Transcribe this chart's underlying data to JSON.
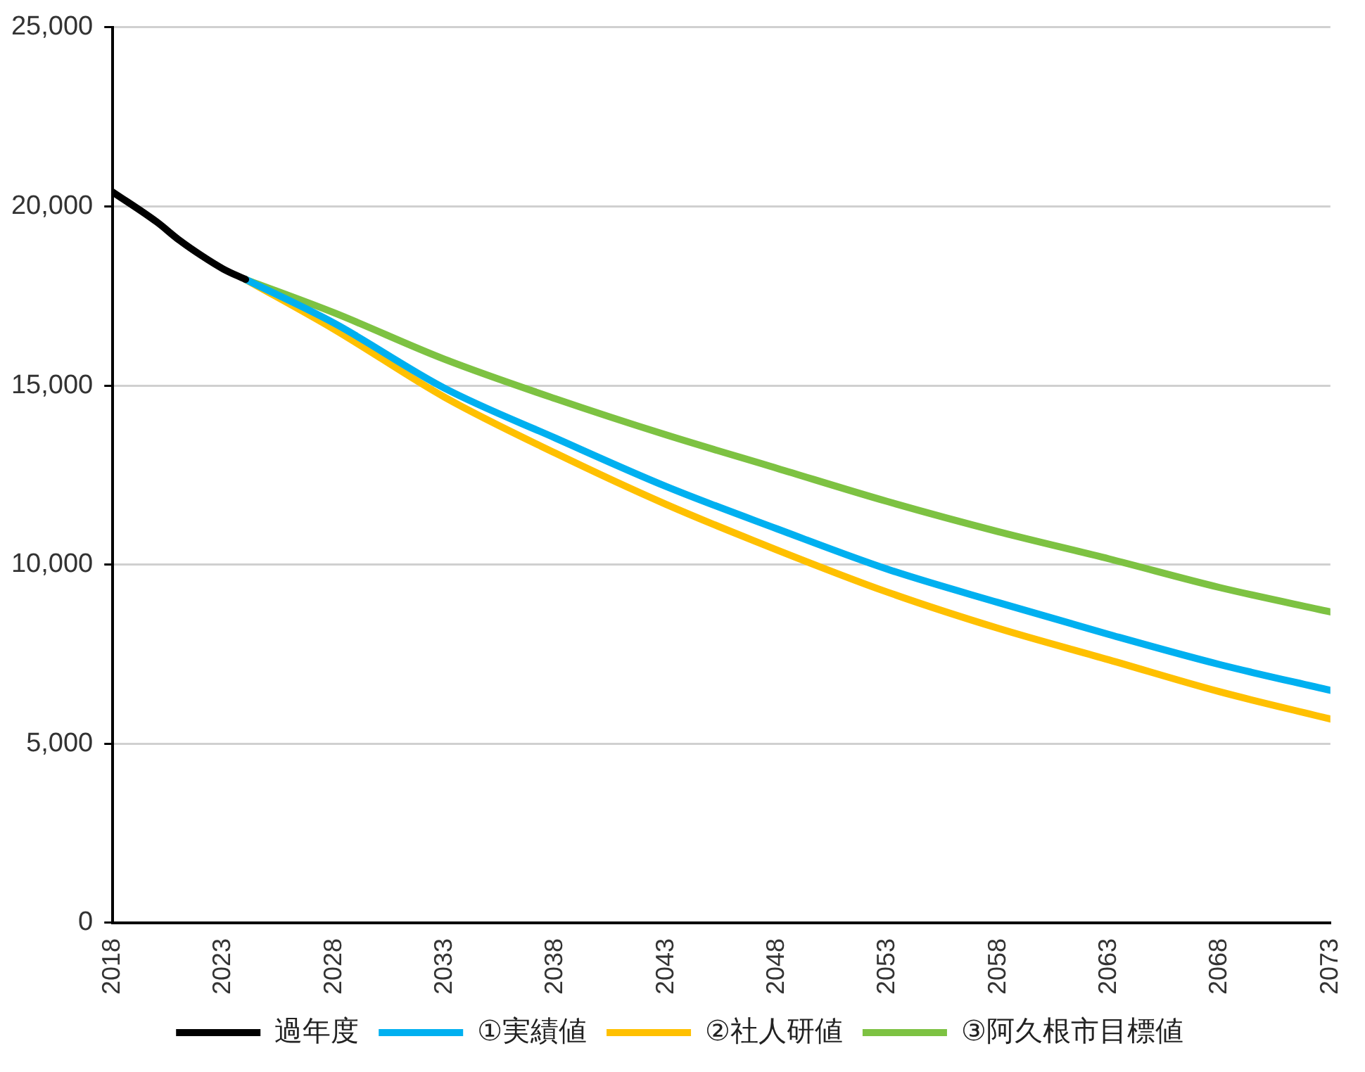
{
  "chart_data": {
    "type": "line",
    "xlim": [
      2018,
      2073
    ],
    "xticks": [
      2018,
      2023,
      2028,
      2033,
      2038,
      2043,
      2048,
      2053,
      2058,
      2063,
      2068,
      2073
    ],
    "ylim": [
      0,
      25000
    ],
    "yticks": [
      {
        "value": 0,
        "label": "0"
      },
      {
        "value": 5000,
        "label": "5,000"
      },
      {
        "value": 10000,
        "label": "10,000"
      },
      {
        "value": 15000,
        "label": "15,000"
      },
      {
        "value": 20000,
        "label": "20,000"
      },
      {
        "value": 25000,
        "label": "25,000"
      }
    ],
    "grid": "y",
    "legend": "bottom",
    "marker": "none",
    "line_style": "solid",
    "series": [
      {
        "name": "過年度",
        "color": "#000000",
        "x": [
          2018,
          2020,
          2021,
          2022,
          2023,
          2024
        ],
        "values": [
          20400,
          19560,
          19060,
          18630,
          18250,
          17960
        ]
      },
      {
        "name": "①実績値",
        "color": "#00b0f0",
        "x": [
          2024,
          2028,
          2033,
          2038,
          2043,
          2048,
          2053,
          2058,
          2063,
          2068,
          2073
        ],
        "values": [
          17960,
          16740,
          14920,
          13530,
          12180,
          11000,
          9870,
          8940,
          8050,
          7210,
          6490
        ]
      },
      {
        "name": "②社人研値",
        "color": "#ffc000",
        "x": [
          2024,
          2028,
          2033,
          2038,
          2043,
          2048,
          2053,
          2058,
          2063,
          2068,
          2073
        ],
        "values": [
          17960,
          16570,
          14670,
          13110,
          11680,
          10410,
          9230,
          8220,
          7340,
          6450,
          5690
        ]
      },
      {
        "name": "③阿久根市目標値",
        "color": "#7dc242",
        "x": [
          2024,
          2028,
          2033,
          2038,
          2043,
          2048,
          2053,
          2058,
          2063,
          2068,
          2073
        ],
        "values": [
          17960,
          17030,
          15730,
          14630,
          13620,
          12690,
          11760,
          10920,
          10160,
          9360,
          8680
        ]
      }
    ]
  }
}
